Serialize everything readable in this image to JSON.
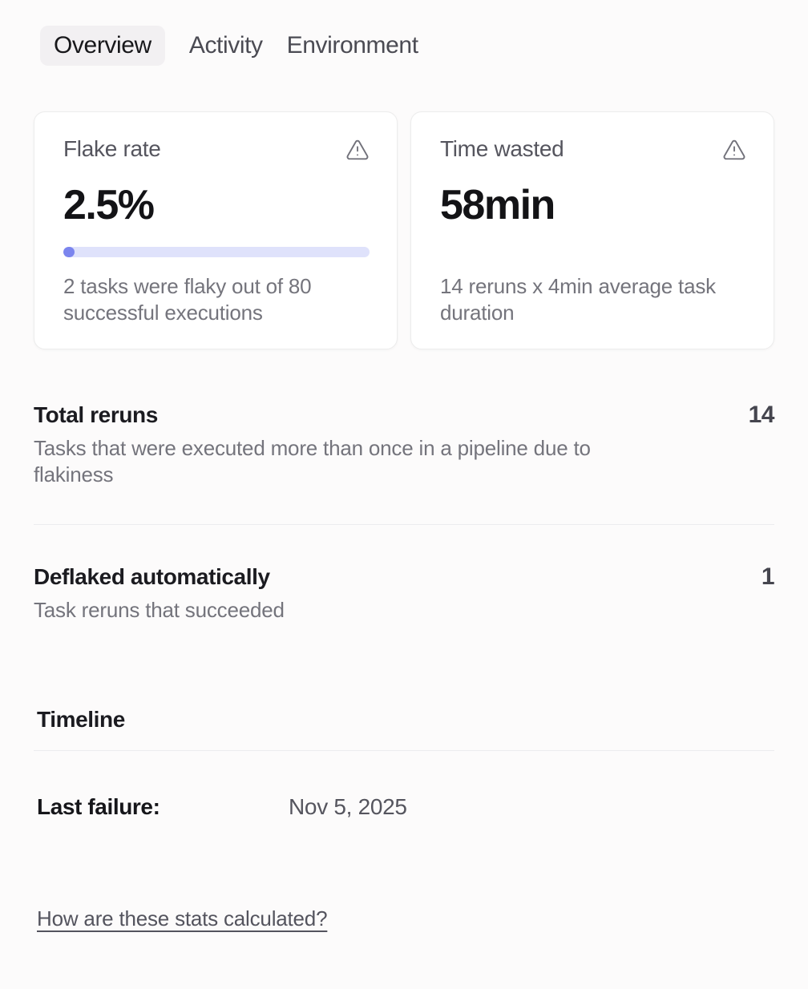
{
  "tabs": [
    {
      "label": "Overview",
      "active": true
    },
    {
      "label": "Activity",
      "active": false
    },
    {
      "label": "Environment",
      "active": false
    }
  ],
  "cards": {
    "flake_rate": {
      "title": "Flake rate",
      "value": "2.5%",
      "progress_percent": 2.5,
      "description": "2 tasks were flaky out of 80 successful executions"
    },
    "time_wasted": {
      "title": "Time wasted",
      "value": "58min",
      "description": "14 reruns x 4min average task duration"
    }
  },
  "stats": {
    "total_reruns": {
      "title": "Total reruns",
      "value": "14",
      "description": "Tasks that were executed more than once in a pipeline due to flakiness"
    },
    "deflaked": {
      "title": "Deflaked automatically",
      "value": "1",
      "description": "Task reruns that succeeded"
    }
  },
  "timeline": {
    "heading": "Timeline",
    "last_failure_label": "Last failure:",
    "last_failure_value": "Nov 5, 2025"
  },
  "footer_link": "How are these stats calculated?",
  "colors": {
    "progress_track": "#dfe2fb",
    "progress_fill": "#7b85ee",
    "active_tab_bg": "#f2f0f2",
    "warning_icon": "#71717a"
  }
}
